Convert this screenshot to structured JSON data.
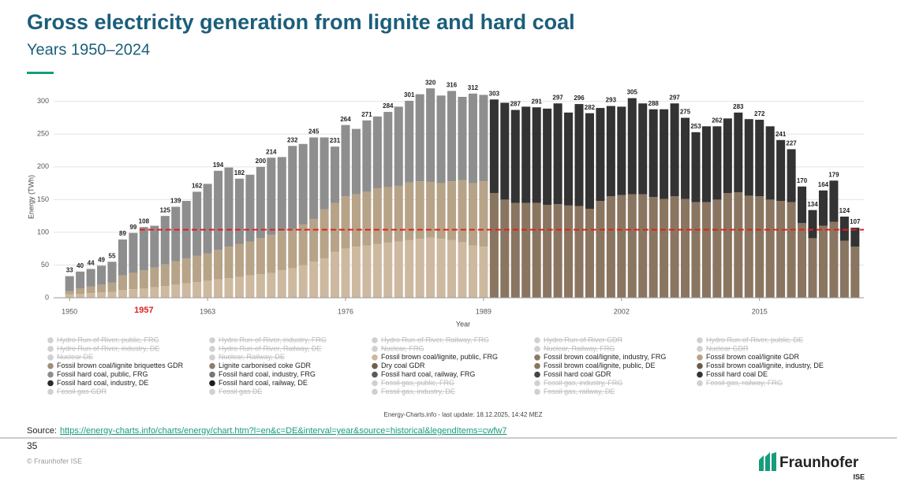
{
  "header": {
    "title": "Gross electricity generation from lignite and hard coal",
    "subtitle": "Years 1950–2024"
  },
  "chart_data": {
    "type": "stacked_bar",
    "y_label": "Energy (TWh)",
    "x_label": "Year",
    "x": [
      1950,
      1951,
      1952,
      1953,
      1954,
      1955,
      1956,
      1957,
      1958,
      1959,
      1960,
      1961,
      1962,
      1963,
      1964,
      1965,
      1966,
      1967,
      1968,
      1969,
      1970,
      1971,
      1972,
      1973,
      1974,
      1975,
      1976,
      1977,
      1978,
      1979,
      1980,
      1981,
      1982,
      1983,
      1984,
      1985,
      1986,
      1987,
      1988,
      1989,
      1990,
      1991,
      1992,
      1993,
      1994,
      1995,
      1996,
      1997,
      1998,
      1999,
      2000,
      2001,
      2002,
      2003,
      2004,
      2005,
      2006,
      2007,
      2008,
      2009,
      2010,
      2011,
      2012,
      2013,
      2014,
      2015,
      2016,
      2017,
      2018,
      2019,
      2020,
      2021,
      2022,
      2023,
      2024
    ],
    "xlim": [
      1948.5,
      2025.5
    ],
    "xticks": [
      1950,
      1963,
      1976,
      1989,
      2002,
      2015
    ],
    "ylim": [
      0,
      325
    ],
    "yticks": [
      0,
      50,
      100,
      150,
      200,
      250,
      300
    ],
    "grid": true,
    "total_labels": [
      33,
      40,
      44,
      49,
      55,
      89,
      99,
      108,
      null,
      125,
      139,
      null,
      162,
      null,
      194,
      null,
      182,
      null,
      200,
      214,
      null,
      232,
      null,
      245,
      null,
      231,
      264,
      null,
      271,
      null,
      284,
      null,
      301,
      null,
      320,
      null,
      316,
      null,
      312,
      null,
      303,
      null,
      287,
      null,
      291,
      null,
      297,
      null,
      296,
      282,
      null,
      293,
      null,
      305,
      null,
      288,
      null,
      297,
      275,
      253,
      null,
      262,
      null,
      283,
      null,
      272,
      null,
      241,
      227,
      170,
      134,
      164,
      179,
      124,
      107
    ],
    "reference_line": {
      "label": "1957",
      "value": 104,
      "color": "#e02020"
    },
    "series": [
      {
        "name": "Hydro Run-of-River, public, FRG",
        "disabled": true
      },
      {
        "name": "Hydro Run-of-River, industry, FRG",
        "disabled": true
      },
      {
        "name": "Hydro Run-of-River, Railway, FRG",
        "disabled": true
      },
      {
        "name": "Hydro Run-of-River GDR",
        "disabled": true
      },
      {
        "name": "Hydro Run-of-River, public, DE",
        "disabled": true
      },
      {
        "name": "Hydro Run-of-River, industry, DE",
        "disabled": true
      },
      {
        "name": "Hydro Run-of-River, Railway, DE",
        "disabled": true
      },
      {
        "name": "Nuclear, FRG",
        "disabled": true
      },
      {
        "name": "Nuclear, Railway, FRG",
        "disabled": true
      },
      {
        "name": "Nuclear GDR",
        "disabled": true
      },
      {
        "name": "Nuclear DE",
        "disabled": true
      },
      {
        "name": "Nuclear, Railway, DE",
        "disabled": true
      },
      {
        "name": "Fossil brown coal/lignite, public, FRG",
        "color": "#cdb99f",
        "values": [
          5,
          6,
          7,
          8,
          9,
          12,
          13,
          14,
          16,
          18,
          20,
          22,
          24,
          26,
          28,
          30,
          32,
          34,
          36,
          38,
          42,
          45,
          50,
          55,
          60,
          70,
          75,
          78,
          80,
          82,
          84,
          86,
          88,
          90,
          92,
          90,
          88,
          85,
          80,
          78,
          null,
          null,
          null,
          null,
          null,
          null,
          null,
          null,
          null,
          null,
          null,
          null,
          null,
          null,
          null,
          null,
          null,
          null,
          null,
          null,
          null,
          null,
          null,
          null,
          null,
          null,
          null,
          null,
          null,
          null,
          null,
          null,
          null,
          null,
          null
        ]
      },
      {
        "name": "Fossil brown coal/lignite, industry, FRG",
        "color": "#8a7a66"
      },
      {
        "name": "Fossil brown coal/lignite GDR",
        "color": "#b7a387",
        "values": [
          5,
          8,
          10,
          12,
          14,
          22,
          25,
          28,
          30,
          33,
          36,
          38,
          40,
          42,
          45,
          48,
          50,
          52,
          55,
          58,
          60,
          60,
          62,
          65,
          75,
          75,
          80,
          80,
          82,
          85,
          85,
          85,
          88,
          88,
          85,
          85,
          90,
          95,
          95,
          100,
          null,
          null,
          null,
          null,
          null,
          null,
          null,
          null,
          null,
          null,
          null,
          null,
          null,
          null,
          null,
          null,
          null,
          null,
          null,
          null,
          null,
          null,
          null,
          null,
          null,
          null,
          null,
          null,
          null,
          null,
          null,
          null,
          null,
          null,
          null
        ]
      },
      {
        "name": "Fossil brown coal/lignite briquettes GDR",
        "color": "#a08f7a"
      },
      {
        "name": "Lignite carbonised coke GDR",
        "color": "#8c7e6e"
      },
      {
        "name": "Dry coal GDR",
        "color": "#6f6050"
      },
      {
        "name": "Fossil brown coal/lignite, public, DE",
        "color": "#8a7560",
        "values": [
          null,
          null,
          null,
          null,
          null,
          null,
          null,
          null,
          null,
          null,
          null,
          null,
          null,
          null,
          null,
          null,
          null,
          null,
          null,
          null,
          null,
          null,
          null,
          null,
          null,
          null,
          null,
          null,
          null,
          null,
          null,
          null,
          null,
          null,
          null,
          null,
          null,
          null,
          null,
          null,
          160,
          150,
          145,
          145,
          145,
          142,
          143,
          141,
          140,
          136,
          148,
          155,
          157,
          158,
          158,
          154,
          151,
          155,
          151,
          146,
          146,
          150,
          160,
          161,
          156,
          155,
          150,
          148,
          146,
          114,
          91,
          110,
          116,
          87,
          78
        ]
      },
      {
        "name": "Fossil brown coal/lignite, industry, DE",
        "color": "#6e5a48"
      },
      {
        "name": "Fossil hard coal, public, FRG",
        "color": "#8e8e8e",
        "values": [
          23,
          26,
          27,
          29,
          32,
          55,
          61,
          66,
          64,
          74,
          83,
          88,
          98,
          106,
          121,
          121,
          100,
          102,
          109,
          118,
          113,
          127,
          123,
          125,
          110,
          86,
          109,
          100,
          109,
          110,
          115,
          121,
          125,
          133,
          143,
          134,
          138,
          127,
          137,
          132,
          null,
          null,
          null,
          null,
          null,
          null,
          null,
          null,
          null,
          null,
          null,
          null,
          null,
          null,
          null,
          null,
          null,
          null,
          null,
          null,
          null,
          null,
          null,
          null,
          null,
          null,
          null,
          null,
          null,
          null,
          null,
          null,
          null,
          null,
          null
        ]
      },
      {
        "name": "Fossil hard coal, industry, FRG",
        "color": "#777777"
      },
      {
        "name": "Fossil hard coal, railway, FRG",
        "color": "#5a5a5a"
      },
      {
        "name": "Fossil hard coal GDR",
        "color": "#444444"
      },
      {
        "name": "Fossil hard coal DE",
        "color": "#333333",
        "values": [
          null,
          null,
          null,
          null,
          null,
          null,
          null,
          null,
          null,
          null,
          null,
          null,
          null,
          null,
          null,
          null,
          null,
          null,
          null,
          null,
          null,
          null,
          null,
          null,
          null,
          null,
          null,
          null,
          null,
          null,
          null,
          null,
          null,
          null,
          null,
          null,
          null,
          null,
          null,
          null,
          143,
          148,
          142,
          147,
          146,
          147,
          154,
          142,
          156,
          146,
          142,
          138,
          135,
          147,
          139,
          134,
          137,
          142,
          124,
          107,
          116,
          112,
          114,
          122,
          117,
          117,
          112,
          93,
          81,
          56,
          43,
          54,
          63,
          37,
          29
        ]
      },
      {
        "name": "Fossil hard coal, industry, DE",
        "color": "#2a2a2a"
      },
      {
        "name": "Fossil hard coal, railway, DE",
        "color": "#1c1c1c"
      },
      {
        "name": "Fossil gas, public, FRG",
        "disabled": true
      },
      {
        "name": "Fossil gas, industry, FRG",
        "disabled": true
      },
      {
        "name": "Fossil gas, railway, FRG",
        "disabled": true
      },
      {
        "name": "Fossil gas GDR",
        "disabled": true
      },
      {
        "name": "Fossil gas DE",
        "disabled": true
      },
      {
        "name": "Fossil gas, industry, DE",
        "disabled": true
      },
      {
        "name": "Fossil gas, railway, DE",
        "disabled": true
      }
    ],
    "footnote": "Energy-Charts.info - last update: 18.12.2025, 14:42 MEZ"
  },
  "footer": {
    "source_label": "Source:",
    "source_url": "https://energy-charts.info/charts/energy/chart.htm?l=en&c=DE&interval=year&source=historical&legendItems=cwfw7",
    "page_number": "35",
    "copyright": "© Fraunhofer ISE",
    "logo_name": "Fraunhofer",
    "logo_sub": "ISE"
  }
}
